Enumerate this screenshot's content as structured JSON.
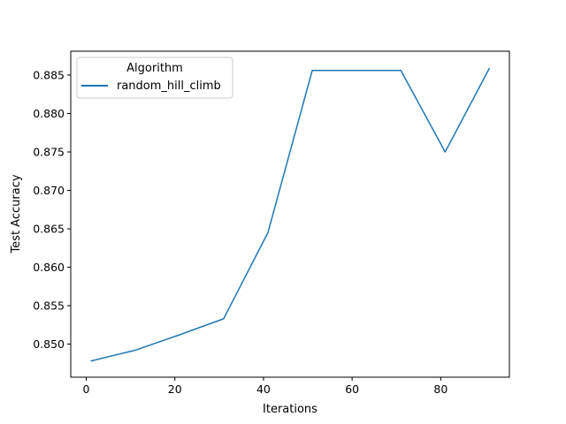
{
  "chart_data": {
    "type": "line",
    "xlabel": "Iterations",
    "ylabel": "Test Accuracy",
    "xlim": [
      -3.5,
      95.5
    ],
    "ylim": [
      0.8457,
      0.8881
    ],
    "xticks": [
      0,
      20,
      40,
      60,
      80
    ],
    "yticks": [
      0.85,
      0.855,
      0.86,
      0.865,
      0.87,
      0.875,
      0.88,
      0.885
    ],
    "ytick_labels": [
      "0.850",
      "0.855",
      "0.860",
      "0.865",
      "0.870",
      "0.875",
      "0.880",
      "0.885"
    ],
    "legend": {
      "title": "Algorithm",
      "placement": "top-left"
    },
    "grid": false,
    "series": [
      {
        "name": "random_hill_climb",
        "color": "#1f77b4",
        "x": [
          1,
          11,
          21,
          31,
          41,
          51,
          61,
          71,
          81,
          91
        ],
        "y": [
          0.8478,
          0.8492,
          0.8512,
          0.8533,
          0.8645,
          0.8856,
          0.8856,
          0.8856,
          0.875,
          0.8859
        ]
      }
    ]
  }
}
